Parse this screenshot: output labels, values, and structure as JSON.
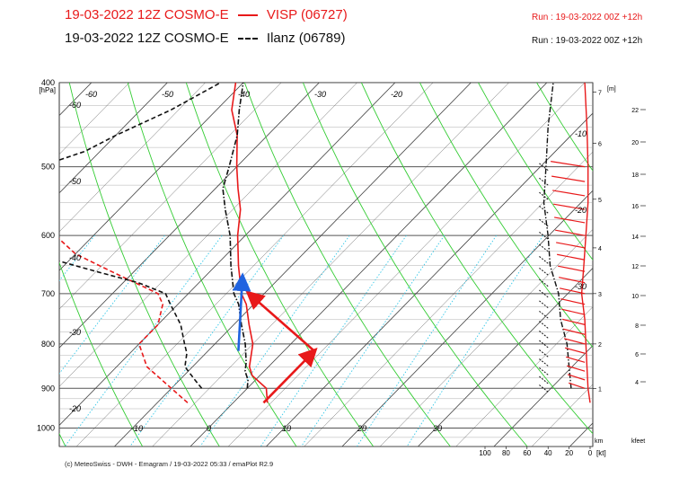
{
  "header": {
    "title_1": "19-03-2022 12Z COSMO-E",
    "station_1": "VISP (06727)",
    "title_2": "19-03-2022 12Z COSMO-E",
    "station_2": "Ilanz (06789)",
    "run_1": "Run : 19-03-2022 00Z +12h",
    "run_2": "Run : 19-03-2022 00Z +12h",
    "series_1_color": "#e8191a",
    "series_2_color": "#111111"
  },
  "footer": "(c) MeteoSwiss - DWH - Emagram / 19-03-2022  05:33 / emaPlot R2.9",
  "chart_data": {
    "type": "line",
    "plot": "emagram",
    "pressure_unit": "[hPa]",
    "pressure_ticks": [
      "400",
      "500",
      "600",
      "700",
      "800",
      "900",
      "1000"
    ],
    "pressure_range": [
      1050,
      400
    ],
    "temperature_labels_bottom": [
      "-10",
      "0",
      "10",
      "20",
      "30"
    ],
    "temperature_labels_top": [
      "-60",
      "-50",
      "-40",
      "-30",
      "-20"
    ],
    "temperature_labels_left": [
      "-60",
      "-50",
      "-40",
      "-30",
      "-20"
    ],
    "temperature_labels_right": [
      "-10",
      "-20",
      "-30"
    ],
    "height_km_unit": "[m]",
    "height_km_ticks": [
      "1",
      "2",
      "3",
      "4",
      "5",
      "6",
      "7"
    ],
    "height_kfeet_ticks": [
      "4",
      "6",
      "8",
      "10",
      "12",
      "14",
      "16",
      "18",
      "20",
      "22"
    ],
    "km_label": "km",
    "kfeet_label": "kfeet",
    "wind_speed_ticks": [
      "100",
      "80",
      "60",
      "40",
      "20",
      "0"
    ],
    "wind_speed_unit": "[kt]",
    "colors": {
      "isotherm": "#404040",
      "dry_adiabat": "#33cc33",
      "moist_adiabat": "#33cc33",
      "mixing_ratio": "#35c8e8",
      "visp": "#e8191a",
      "ilanz": "#111111",
      "cape_arrow": "#1f63e0"
    },
    "series": [
      {
        "name": "VISP (06727)",
        "style": "solid",
        "variable": "temperature",
        "points": [
          [
            935,
            4.5
          ],
          [
            900,
            2.5
          ],
          [
            870,
            -1
          ],
          [
            850,
            -2.5
          ],
          [
            800,
            -5
          ],
          [
            760,
            -8
          ],
          [
            720,
            -11
          ],
          [
            700,
            -13
          ],
          [
            650,
            -17
          ],
          [
            600,
            -21
          ],
          [
            560,
            -24
          ],
          [
            530,
            -27
          ],
          [
            500,
            -30
          ],
          [
            460,
            -34
          ],
          [
            430,
            -38
          ],
          [
            400,
            -41
          ]
        ]
      },
      {
        "name": "VISP (06727)",
        "style": "dashed",
        "variable": "dewpoint",
        "points": [
          [
            935,
            -6
          ],
          [
            900,
            -10
          ],
          [
            850,
            -16
          ],
          [
            800,
            -20
          ],
          [
            760,
            -20
          ],
          [
            720,
            -22
          ],
          [
            700,
            -24
          ],
          [
            660,
            -33
          ],
          [
            630,
            -40
          ],
          [
            600,
            -45
          ],
          [
            580,
            -55
          ],
          [
            560,
            -68
          ],
          [
            540,
            -78
          ],
          [
            520,
            -74
          ],
          [
            500,
            -70
          ],
          [
            480,
            -68
          ]
        ]
      },
      {
        "name": "Ilanz (06789)",
        "style": "dashdot",
        "variable": "temperature",
        "points": [
          [
            900,
            0
          ],
          [
            880,
            -1
          ],
          [
            860,
            -2.5
          ],
          [
            840,
            -3.5
          ],
          [
            800,
            -6
          ],
          [
            760,
            -9
          ],
          [
            720,
            -12
          ],
          [
            700,
            -14
          ],
          [
            650,
            -18
          ],
          [
            600,
            -22
          ],
          [
            560,
            -26
          ],
          [
            530,
            -29
          ],
          [
            500,
            -31
          ],
          [
            460,
            -34
          ],
          [
            430,
            -37
          ],
          [
            400,
            -40
          ]
        ]
      },
      {
        "name": "Ilanz (06789)",
        "style": "dashed",
        "variable": "dewpoint",
        "points": [
          [
            900,
            -6
          ],
          [
            880,
            -8
          ],
          [
            850,
            -11
          ],
          [
            820,
            -12.5
          ],
          [
            800,
            -14
          ],
          [
            760,
            -17
          ],
          [
            720,
            -21
          ],
          [
            700,
            -23
          ],
          [
            680,
            -28
          ],
          [
            660,
            -35
          ],
          [
            640,
            -42
          ],
          [
            620,
            -50
          ],
          [
            600,
            -56
          ],
          [
            580,
            -62
          ],
          [
            560,
            -64
          ],
          [
            540,
            -62
          ],
          [
            520,
            -60
          ],
          [
            500,
            -56
          ],
          [
            480,
            -52
          ],
          [
            460,
            -50
          ],
          [
            430,
            -46
          ],
          [
            400,
            -43
          ]
        ]
      }
    ],
    "parcel_arrows": [
      {
        "name": "visp-parcel",
        "color": "#e8191a",
        "from": [
          935,
          4
        ],
        "to": [
          815,
          4
        ]
      },
      {
        "name": "visp-lift",
        "color": "#e8191a",
        "from": [
          815,
          4
        ],
        "to": [
          700,
          -12
        ]
      },
      {
        "name": "ilanz-lift",
        "color": "#1f63e0",
        "from": [
          815,
          -6
        ],
        "to": [
          670,
          -15
        ]
      }
    ],
    "hodograph_profiles": {
      "visp_speed_kt": [
        [
          935,
          0
        ],
        [
          900,
          2
        ],
        [
          850,
          3
        ],
        [
          800,
          4
        ],
        [
          750,
          5
        ],
        [
          700,
          8
        ],
        [
          650,
          6
        ],
        [
          600,
          4
        ],
        [
          550,
          2
        ],
        [
          500,
          2
        ],
        [
          450,
          3
        ],
        [
          400,
          5
        ]
      ],
      "ilanz_speed_kt": [
        [
          900,
          18
        ],
        [
          850,
          20
        ],
        [
          800,
          22
        ],
        [
          750,
          28
        ],
        [
          700,
          30
        ],
        [
          650,
          38
        ],
        [
          600,
          40
        ],
        [
          550,
          44
        ],
        [
          500,
          42
        ],
        [
          450,
          40
        ],
        [
          400,
          35
        ]
      ]
    }
  }
}
